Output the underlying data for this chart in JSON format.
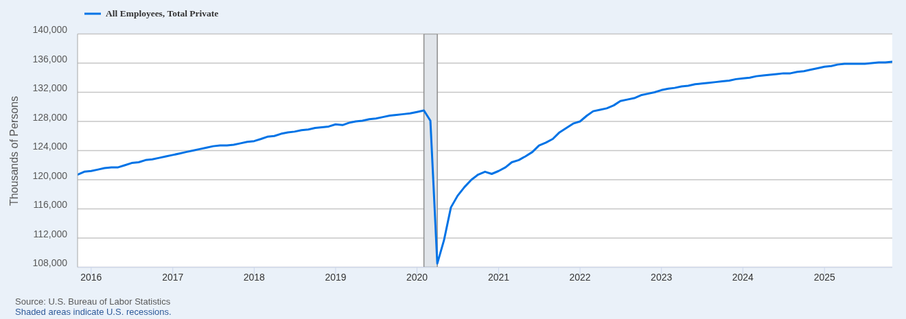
{
  "chart_data": {
    "type": "line",
    "ylabel": "Thousands of Persons",
    "x": [
      "2015-11",
      "2015-12",
      "2016-01",
      "2016-02",
      "2016-03",
      "2016-04",
      "2016-05",
      "2016-06",
      "2016-07",
      "2016-08",
      "2016-09",
      "2016-10",
      "2016-11",
      "2016-12",
      "2017-01",
      "2017-02",
      "2017-03",
      "2017-04",
      "2017-05",
      "2017-06",
      "2017-07",
      "2017-08",
      "2017-09",
      "2017-10",
      "2017-11",
      "2017-12",
      "2018-01",
      "2018-02",
      "2018-03",
      "2018-04",
      "2018-05",
      "2018-06",
      "2018-07",
      "2018-08",
      "2018-09",
      "2018-10",
      "2018-11",
      "2018-12",
      "2019-01",
      "2019-02",
      "2019-03",
      "2019-04",
      "2019-05",
      "2019-06",
      "2019-07",
      "2019-08",
      "2019-09",
      "2019-10",
      "2019-11",
      "2019-12",
      "2020-01",
      "2020-02",
      "2020-03",
      "2020-04",
      "2020-05",
      "2020-06",
      "2020-07",
      "2020-08",
      "2020-09",
      "2020-10",
      "2020-11",
      "2020-12",
      "2021-01",
      "2021-02",
      "2021-03",
      "2021-04",
      "2021-05",
      "2021-06",
      "2021-07",
      "2021-08",
      "2021-09",
      "2021-10",
      "2021-11",
      "2021-12",
      "2022-01",
      "2022-02",
      "2022-03",
      "2022-04",
      "2022-05",
      "2022-06",
      "2022-07",
      "2022-08",
      "2022-09",
      "2022-10",
      "2022-11",
      "2022-12",
      "2023-01",
      "2023-02",
      "2023-03",
      "2023-04",
      "2023-05",
      "2023-06",
      "2023-07",
      "2023-08",
      "2023-09",
      "2023-10",
      "2023-11",
      "2023-12",
      "2024-01",
      "2024-02",
      "2024-03",
      "2024-04",
      "2024-05",
      "2024-06",
      "2024-07",
      "2024-08",
      "2024-09",
      "2024-10",
      "2024-11",
      "2024-12",
      "2025-01",
      "2025-02",
      "2025-03",
      "2025-04",
      "2025-05",
      "2025-06",
      "2025-07",
      "2025-08",
      "2025-09",
      "2025-10",
      "2025-11"
    ],
    "series": [
      {
        "name": "All Employees, Total Private",
        "color": "#0073e6",
        "values": [
          120700,
          121100,
          121200,
          121400,
          121600,
          121700,
          121700,
          122000,
          122300,
          122400,
          122700,
          122800,
          123000,
          123200,
          123400,
          123600,
          123800,
          124000,
          124200,
          124400,
          124600,
          124700,
          124700,
          124800,
          125000,
          125200,
          125300,
          125600,
          125900,
          126000,
          126300,
          126500,
          126600,
          126800,
          126900,
          127100,
          127200,
          127300,
          127600,
          127500,
          127800,
          128000,
          128100,
          128300,
          128400,
          128600,
          128800,
          128900,
          129000,
          129100,
          129300,
          129500,
          128100,
          108500,
          111700,
          116200,
          117800,
          119000,
          120000,
          120700,
          121100,
          120800,
          121200,
          121700,
          122400,
          122700,
          123200,
          123800,
          124700,
          125100,
          125600,
          126500,
          127100,
          127700,
          128000,
          128800,
          129400,
          129600,
          129800,
          130200,
          130800,
          131000,
          131200,
          131600,
          131800,
          132000,
          132300,
          132500,
          132600,
          132800,
          132900,
          133100,
          133200,
          133300,
          133400,
          133500,
          133600,
          133800,
          133900,
          134000,
          134200,
          134300,
          134400,
          134500,
          134600,
          134600,
          134800,
          134900,
          135100,
          135300,
          135500,
          135600,
          135800,
          135900,
          135900,
          135900,
          135900,
          136000,
          136100,
          136100,
          136200
        ]
      }
    ],
    "xlim": [
      "2015-11",
      "2025-11"
    ],
    "xticks": [
      "2016",
      "2017",
      "2018",
      "2019",
      "2020",
      "2021",
      "2022",
      "2023",
      "2024",
      "2025"
    ],
    "ylim": [
      108000,
      140000
    ],
    "yticks": [
      {
        "value": 108000,
        "label": "108,000"
      },
      {
        "value": 112000,
        "label": "112,000"
      },
      {
        "value": 116000,
        "label": "116,000"
      },
      {
        "value": 120000,
        "label": "120,000"
      },
      {
        "value": 124000,
        "label": "124,000"
      },
      {
        "value": 128000,
        "label": "128,000"
      },
      {
        "value": 132000,
        "label": "132,000"
      },
      {
        "value": 136000,
        "label": "136,000"
      },
      {
        "value": 140000,
        "label": "140,000"
      }
    ],
    "grid": "y",
    "legend": "top left",
    "bands": [
      {
        "axis": "x",
        "from": "2020-02",
        "to": "2020-04",
        "color": "#e1e5ea"
      }
    ],
    "annotations": [
      "Source: U.S. Bureau of Labor Statistics",
      "Shaded areas indicate U.S. recessions."
    ]
  }
}
